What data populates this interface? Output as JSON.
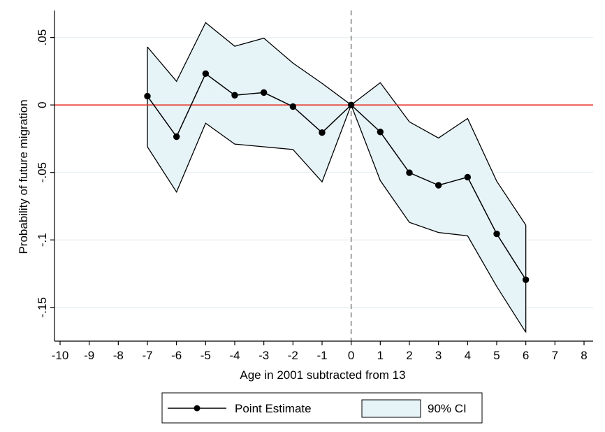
{
  "chart_data": {
    "type": "line",
    "xlabel": "Age in 2001 subtracted from 13",
    "ylabel": "Probability of future migration",
    "xlim": [
      -10,
      8
    ],
    "ylim": [
      -0.175,
      0.07
    ],
    "x_ticks": [
      -10,
      -9,
      -8,
      -7,
      -6,
      -5,
      -4,
      -3,
      -2,
      -1,
      0,
      1,
      2,
      3,
      4,
      5,
      6,
      7,
      8
    ],
    "x_tick_labels": [
      "-10",
      "-9",
      "-8",
      "-7",
      "-6",
      "-5",
      "-4",
      "-3",
      "-2",
      "-1",
      "0",
      "1",
      "2",
      "3",
      "4",
      "5",
      "6",
      "7",
      "8"
    ],
    "y_ticks": [
      0.05,
      0,
      -0.05,
      -0.1,
      -0.15
    ],
    "y_tick_labels": [
      ".05",
      "0",
      "-.05",
      "-.1",
      "-.15"
    ],
    "grid": "horizontal",
    "reference_lines": [
      {
        "axis": "y",
        "value": 0,
        "color": "#e8352a",
        "style": "solid"
      },
      {
        "axis": "x",
        "value": 0,
        "color": "#888888",
        "style": "dashed"
      }
    ],
    "x": [
      -7,
      -6,
      -5,
      -4,
      -3,
      -2,
      -1,
      0,
      1,
      2,
      3,
      4,
      5,
      6
    ],
    "series": [
      {
        "name": "Point Estimate",
        "values": [
          0.0065,
          -0.0235,
          0.0232,
          0.0072,
          0.0092,
          -0.0012,
          -0.0205,
          0.0,
          -0.02,
          -0.0502,
          -0.0595,
          -0.0535,
          -0.0955,
          -0.1295
        ],
        "color": "#000000",
        "marker": "circle"
      },
      {
        "name": "90% CI",
        "type": "area-band",
        "upper": [
          0.043,
          0.0175,
          0.061,
          0.0435,
          0.0495,
          0.031,
          0.016,
          0.0,
          0.0165,
          -0.0125,
          -0.0245,
          -0.01,
          -0.0565,
          -0.089
        ],
        "lower": [
          -0.031,
          -0.0645,
          -0.0135,
          -0.029,
          -0.031,
          -0.033,
          -0.057,
          0.0,
          -0.056,
          -0.087,
          -0.0945,
          -0.097,
          -0.1345,
          -0.1685
        ],
        "fill": "#e6f3f7",
        "stroke": "#000000"
      }
    ],
    "legend": {
      "position": "bottom",
      "entries": [
        "Point Estimate",
        "90% CI"
      ]
    }
  }
}
